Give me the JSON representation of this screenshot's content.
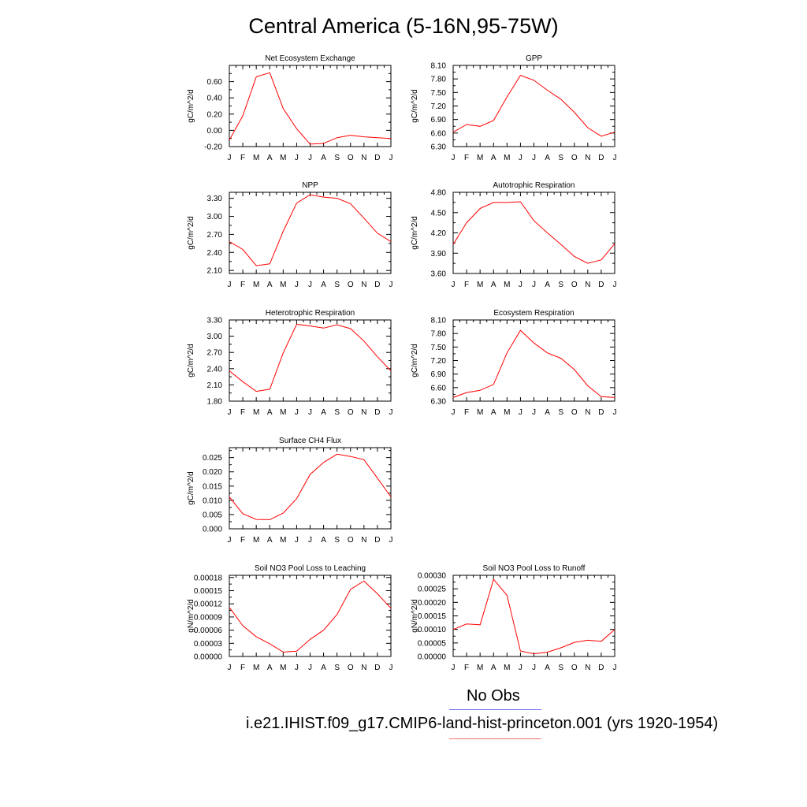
{
  "title": "Central America (5-16N,95-75W)",
  "legend": [
    {
      "label": "No Obs",
      "color": "#6b6bf0"
    },
    {
      "label": "i.e21.IHIST.f09_g17.CMIP6-land-hist-princeton.001 (yrs 1920-1954)",
      "color": "#f07070"
    }
  ],
  "chart_data": [
    {
      "type": "line",
      "title": "Net Ecosystem Exchange",
      "ylabel": "gC/m^2/d",
      "categories": [
        "J",
        "F",
        "M",
        "A",
        "M",
        "J",
        "J",
        "A",
        "S",
        "O",
        "N",
        "D",
        "J"
      ],
      "yticks": [
        "-0.20",
        "0.00",
        "0.20",
        "0.40",
        "0.60"
      ],
      "ylim": [
        -0.2,
        0.8
      ],
      "series": [
        {
          "color": "#ff0000",
          "values": [
            -0.12,
            0.18,
            0.66,
            0.71,
            0.27,
            0.02,
            -0.17,
            -0.16,
            -0.09,
            -0.06,
            -0.08,
            -0.09,
            -0.1
          ]
        }
      ]
    },
    {
      "type": "line",
      "title": "GPP",
      "ylabel": "gC/m^2/d",
      "categories": [
        "J",
        "F",
        "M",
        "A",
        "M",
        "J",
        "J",
        "A",
        "S",
        "O",
        "N",
        "D",
        "J"
      ],
      "yticks": [
        "6.30",
        "6.60",
        "6.90",
        "7.20",
        "7.50",
        "7.80",
        "8.10"
      ],
      "ylim": [
        6.3,
        8.1
      ],
      "series": [
        {
          "color": "#ff0000",
          "values": [
            6.62,
            6.79,
            6.75,
            6.88,
            7.4,
            7.88,
            7.77,
            7.55,
            7.35,
            7.06,
            6.72,
            6.53,
            6.62
          ]
        }
      ]
    },
    {
      "type": "line",
      "title": "NPP",
      "ylabel": "gC/m^2/d",
      "categories": [
        "J",
        "F",
        "M",
        "A",
        "M",
        "J",
        "J",
        "A",
        "S",
        "O",
        "N",
        "D",
        "J"
      ],
      "yticks": [
        "2.10",
        "2.40",
        "2.70",
        "3.00",
        "3.30"
      ],
      "ylim": [
        2.05,
        3.4
      ],
      "series": [
        {
          "color": "#ff0000",
          "values": [
            2.58,
            2.45,
            2.18,
            2.21,
            2.75,
            3.22,
            3.36,
            3.32,
            3.3,
            3.21,
            2.97,
            2.72,
            2.58
          ]
        }
      ]
    },
    {
      "type": "line",
      "title": "Autotrophic Respiration",
      "ylabel": "gC/m^2/d",
      "categories": [
        "J",
        "F",
        "M",
        "A",
        "M",
        "J",
        "J",
        "A",
        "S",
        "O",
        "N",
        "D",
        "J"
      ],
      "yticks": [
        "3.60",
        "3.90",
        "4.20",
        "4.50",
        "4.80"
      ],
      "ylim": [
        3.6,
        4.8
      ],
      "series": [
        {
          "color": "#ff0000",
          "values": [
            4.03,
            4.35,
            4.56,
            4.65,
            4.65,
            4.66,
            4.38,
            4.2,
            4.03,
            3.85,
            3.75,
            3.8,
            4.04
          ]
        }
      ]
    },
    {
      "type": "line",
      "title": "Heterotrophic Respiration",
      "ylabel": "gC/m^2/d",
      "categories": [
        "J",
        "F",
        "M",
        "A",
        "M",
        "J",
        "J",
        "A",
        "S",
        "O",
        "N",
        "D",
        "J"
      ],
      "yticks": [
        "1.80",
        "2.10",
        "2.40",
        "2.70",
        "3.00",
        "3.30"
      ],
      "ylim": [
        1.8,
        3.3
      ],
      "series": [
        {
          "color": "#ff0000",
          "values": [
            2.36,
            2.16,
            1.98,
            2.02,
            2.69,
            3.22,
            3.19,
            3.15,
            3.21,
            3.14,
            2.91,
            2.62,
            2.36
          ]
        }
      ]
    },
    {
      "type": "line",
      "title": "Ecosystem Respiration",
      "ylabel": "gC/m^2/d",
      "categories": [
        "J",
        "F",
        "M",
        "A",
        "M",
        "J",
        "J",
        "A",
        "S",
        "O",
        "N",
        "D",
        "J"
      ],
      "yticks": [
        "6.30",
        "6.60",
        "6.90",
        "7.20",
        "7.50",
        "7.80",
        "8.10"
      ],
      "ylim": [
        6.3,
        8.1
      ],
      "series": [
        {
          "color": "#ff0000",
          "values": [
            6.38,
            6.49,
            6.54,
            6.67,
            7.37,
            7.87,
            7.59,
            7.37,
            7.25,
            7.0,
            6.64,
            6.4,
            6.38
          ]
        }
      ]
    },
    {
      "type": "line",
      "title": "Surface CH4 Flux",
      "ylabel": "gC/m^2/d",
      "categories": [
        "J",
        "F",
        "M",
        "A",
        "M",
        "J",
        "J",
        "A",
        "S",
        "O",
        "N",
        "D",
        "J"
      ],
      "yticks": [
        "0.000",
        "0.005",
        "0.010",
        "0.015",
        "0.020",
        "0.025"
      ],
      "ylim": [
        0.0,
        0.0285
      ],
      "series": [
        {
          "color": "#ff0000",
          "values": [
            0.0112,
            0.0053,
            0.0033,
            0.0032,
            0.0055,
            0.0106,
            0.0191,
            0.0233,
            0.0262,
            0.0254,
            0.0243,
            0.0178,
            0.0112
          ]
        }
      ]
    },
    {
      "type": "line",
      "title": "Soil NO3 Pool Loss to Leaching",
      "ylabel": "gN/m^2/d",
      "categories": [
        "J",
        "F",
        "M",
        "A",
        "M",
        "J",
        "J",
        "A",
        "S",
        "O",
        "N",
        "D",
        "J"
      ],
      "yticks": [
        "0.00000",
        "0.00003",
        "0.00006",
        "0.00009",
        "0.00012",
        "0.00015",
        "0.00018"
      ],
      "ylim": [
        0.0,
        0.000185
      ],
      "series": [
        {
          "color": "#ff0000",
          "values": [
            0.000112,
            7e-05,
            4.5e-05,
            2.9e-05,
            1e-05,
            1.2e-05,
            3.9e-05,
            6e-05,
            9.6e-05,
            0.000153,
            0.000172,
            0.000143,
            0.00011
          ]
        }
      ]
    },
    {
      "type": "line",
      "title": "Soil NO3 Pool Loss to Runoff",
      "ylabel": "gN/m^2/d",
      "categories": [
        "J",
        "F",
        "M",
        "A",
        "M",
        "J",
        "J",
        "A",
        "S",
        "O",
        "N",
        "D",
        "J"
      ],
      "yticks": [
        "0.00000",
        "0.00005",
        "0.00010",
        "0.00015",
        "0.00020",
        "0.00025",
        "0.00030"
      ],
      "ylim": [
        0.0,
        0.0003
      ],
      "series": [
        {
          "color": "#ff0000",
          "values": [
            0.0001,
            0.00012,
            0.000117,
            0.000285,
            0.000226,
            2e-05,
            1e-05,
            1.6e-05,
            3.2e-05,
            5.2e-05,
            6e-05,
            5.6e-05,
            0.0001
          ]
        }
      ]
    }
  ]
}
